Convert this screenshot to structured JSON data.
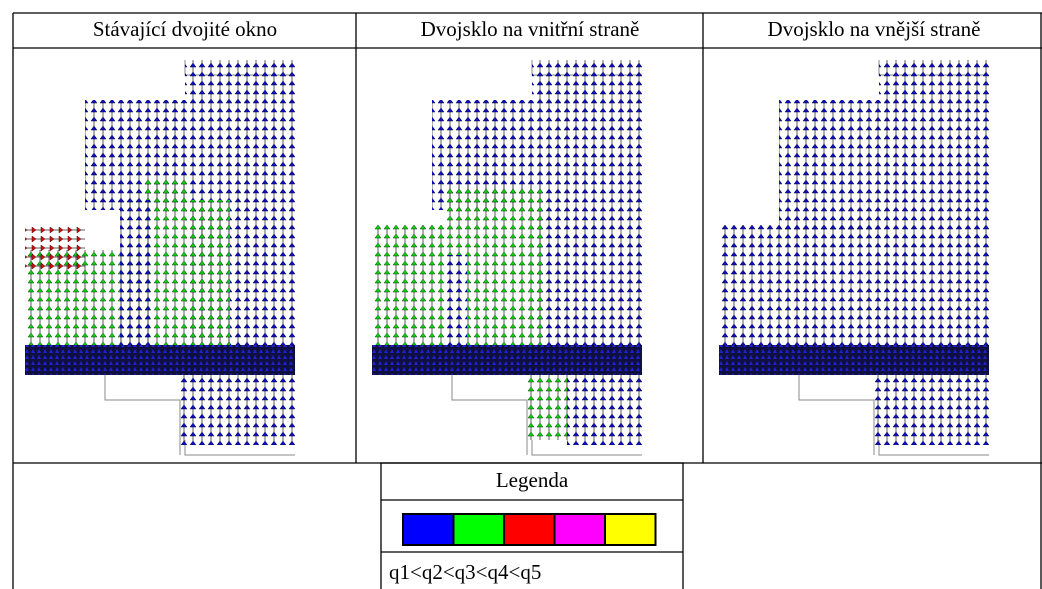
{
  "table": {
    "header": [
      "Stávající dvojité okno",
      "Dvojsklo na vnitřní straně",
      "Dvojsklo na vnější straně"
    ],
    "legend": {
      "title": "Legenda",
      "colors": [
        "#0000ff",
        "#00ff00",
        "#ff0000",
        "#ff00ff",
        "#ffff00"
      ],
      "text": "q1<q2<q3<q4<q5"
    }
  }
}
